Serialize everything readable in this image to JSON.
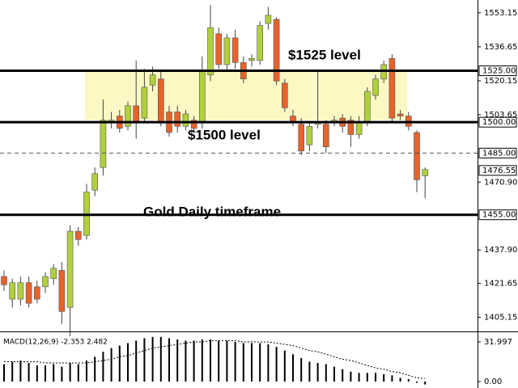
{
  "chart_data": [
    {
      "type": "candlestick",
      "open": [
        1425,
        1414,
        1414,
        1422,
        1420,
        1420,
        1424,
        1428,
        1410,
        1447,
        1445,
        1467,
        1478,
        1500,
        1503,
        1498,
        1508,
        1502,
        1518,
        1521,
        1505,
        1505,
        1498,
        1501,
        1500,
        1523,
        1543,
        1528,
        1541,
        1529,
        1530,
        1530,
        1548,
        1550,
        1519,
        1503,
        1499,
        1489,
        1499,
        1499,
        1500,
        1502,
        1501,
        1494,
        1500,
        1513,
        1521,
        1531,
        1504,
        1503,
        1495,
        1474
      ],
      "high": [
        1428,
        1424,
        1425,
        1425,
        1423,
        1427,
        1431,
        1432,
        1450,
        1449,
        1470,
        1478,
        1511,
        1505,
        1506,
        1510,
        1530,
        1526,
        1527,
        1525,
        1508,
        1508,
        1506,
        1503,
        1532,
        1557,
        1546,
        1543,
        1545,
        1532,
        1533,
        1549,
        1556,
        1551,
        1521,
        1506,
        1502,
        1500,
        1525,
        1501,
        1503,
        1504,
        1503,
        1503,
        1517,
        1523,
        1530,
        1533,
        1506,
        1505,
        1496,
        1478
      ],
      "low": [
        1418,
        1410,
        1411,
        1410,
        1412,
        1417,
        1421,
        1402,
        1396,
        1440,
        1443,
        1464,
        1474,
        1497,
        1495,
        1496,
        1492,
        1500,
        1515,
        1498,
        1493,
        1495,
        1496,
        1495,
        1497,
        1520,
        1526,
        1525,
        1526,
        1519,
        1527,
        1528,
        1545,
        1518,
        1505,
        1498,
        1484,
        1486,
        1497,
        1485,
        1498,
        1495,
        1488,
        1492,
        1498,
        1511,
        1519,
        1500,
        1501,
        1496,
        1466,
        1463
      ],
      "close": [
        1421,
        1422,
        1422,
        1412,
        1414,
        1425,
        1429,
        1408,
        1447,
        1443,
        1466,
        1475,
        1501,
        1501,
        1497,
        1508,
        1500,
        1517,
        1523,
        1500,
        1495,
        1498,
        1504,
        1497,
        1525,
        1546,
        1528,
        1541,
        1529,
        1521,
        1531,
        1547,
        1552,
        1520,
        1507,
        1500,
        1486,
        1498,
        1500,
        1488,
        1501,
        1498,
        1494,
        1500,
        1515,
        1521,
        1528,
        1502,
        1503,
        1498,
        1472,
        1477
      ],
      "up_color": "#b0d03c",
      "down_color": "#e8622a",
      "ylim": [
        1399.1,
        1559.4
      ],
      "yticks": [
        1553.15,
        1536.65,
        1520.15,
        1503.65,
        {
          "value": 1470.9,
          "label": "1470.90"
        },
        {
          "value": 1437.9,
          "label": "1437.90"
        },
        1421.65,
        1405.15
      ],
      "levels": [
        {
          "value": 1525,
          "label": "1525.00",
          "style": "solid"
        },
        {
          "value": 1500,
          "label": "1500.00",
          "style": "solid"
        },
        {
          "value": 1485,
          "label": "1485.00",
          "style": "dashed"
        },
        {
          "value": 1476.55,
          "label": "1476.55",
          "style": "none"
        },
        {
          "value": 1455,
          "label": "1455.00",
          "style": "solid"
        }
      ],
      "zone": [
        1501,
        1525
      ],
      "zone_color": "#fbf8c4",
      "annotations": [
        "$1525 level",
        "$1500 level",
        "Gold Daily timeframe"
      ]
    },
    {
      "type": "macd",
      "title": "MACD(12,26,9) -2.353 2.482",
      "values": [
        14,
        16,
        17,
        15,
        13,
        13,
        14,
        12,
        15,
        14,
        17,
        20,
        24,
        27,
        29,
        31,
        33,
        35,
        36,
        36,
        35,
        34,
        33,
        33,
        34,
        34,
        33,
        33,
        32,
        31,
        31,
        31,
        30,
        28,
        25,
        22,
        19,
        16,
        15,
        14,
        12,
        10,
        8,
        7,
        7,
        7,
        6,
        5,
        3,
        2,
        -1,
        -2.353
      ],
      "signal": [
        16,
        16,
        16,
        16,
        16,
        15,
        15,
        15,
        15,
        15,
        15,
        16,
        17,
        18,
        20,
        21,
        23,
        25,
        27,
        28,
        29,
        30,
        31,
        32,
        32,
        33,
        33,
        33,
        33,
        32,
        32,
        32,
        32,
        31,
        30,
        29,
        27,
        25,
        24,
        22,
        20,
        18,
        17,
        15,
        13,
        11,
        10,
        8,
        7,
        5,
        3,
        2.482
      ],
      "ylim": [
        -3.9,
        38.5
      ],
      "yticks": [
        31.997,
        {
          "value": 0,
          "label": "0.00"
        }
      ],
      "color": "#000000"
    }
  ]
}
